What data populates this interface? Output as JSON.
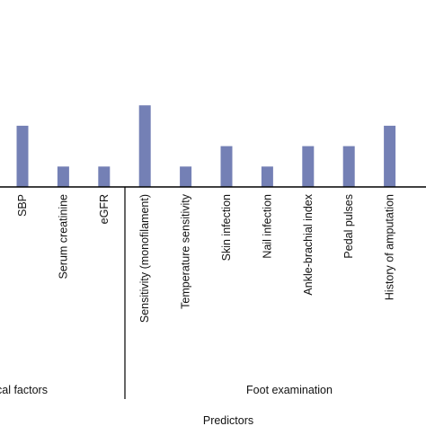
{
  "chart_data": {
    "type": "bar",
    "xlabel": "Predictors",
    "categories": [
      "SBP",
      "Serum creatinine",
      "eGFR",
      "Sensitivity (monofilament)",
      "Temperature sensitivity",
      "Skin infection",
      "Nail infection",
      "Ankle-brachial index",
      "Pedal pulses",
      "History of amputation"
    ],
    "values": [
      3,
      1,
      1,
      4,
      1,
      2,
      1,
      2,
      2,
      3
    ],
    "groups": [
      {
        "label": "cal factors",
        "categories": [
          "SBP",
          "Serum creatinine",
          "eGFR"
        ]
      },
      {
        "label": "Foot examination",
        "categories": [
          "Sensitivity (monofilament)",
          "Temperature sensitivity",
          "Skin infection",
          "Nail infection",
          "Ankle-brachial index",
          "Pedal pulses",
          "History of amputation"
        ]
      }
    ],
    "grid": false,
    "bar_color": "#7480b5"
  }
}
